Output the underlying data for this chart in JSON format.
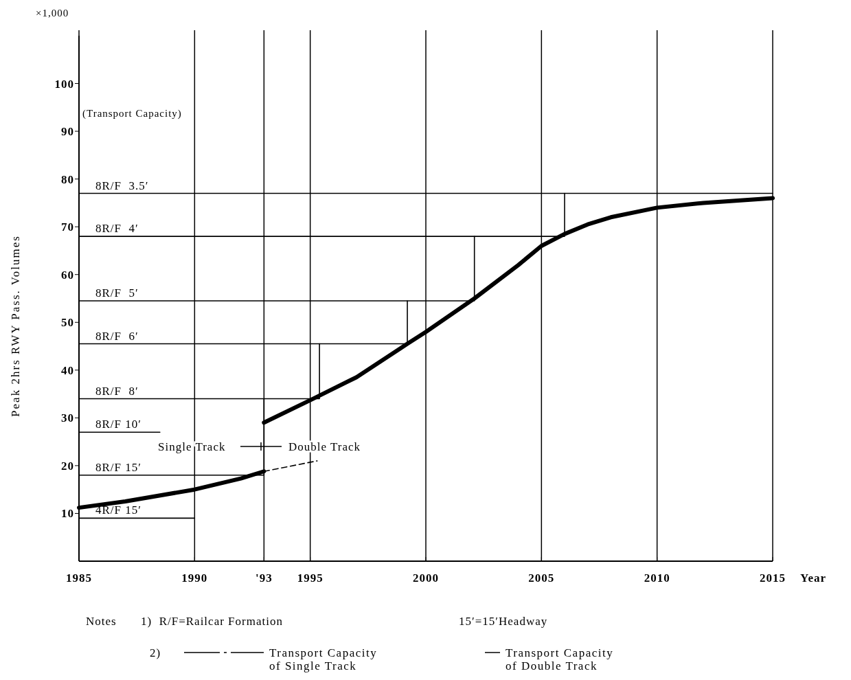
{
  "chart_data": {
    "type": "line",
    "xlabel": "Year",
    "ylabel": "Peak 2hrs RWY Pass. Volumes",
    "annotations": [
      "×1,000",
      "(Transport Capacity)",
      "Single Track",
      "Double Track",
      "Notes",
      "1)  R/F=Railcar Formation",
      "15′=15′Headway",
      "2)",
      "Transport Capacity of Single Track",
      "Transport Capacity of Double Track"
    ],
    "xlim": [
      1985,
      2015
    ],
    "ylim": [
      0,
      110
    ],
    "xticks": [
      1985,
      1990,
      {
        "value": 1993,
        "label": "'93"
      },
      1995,
      2000,
      2005,
      2010,
      2015
    ],
    "yticks": [
      10,
      20,
      30,
      40,
      50,
      60,
      70,
      80,
      90,
      100
    ],
    "grid": "x",
    "legend": "left",
    "marker": "none",
    "series": [
      {
        "name": "8R/F  3.5′",
        "color": "#000000",
        "x": [
          1985,
          2015
        ],
        "values": [
          77,
          77
        ]
      },
      {
        "name": "8R/F  4′",
        "color": "#000000",
        "x": [
          1985,
          2006,
          2006
        ],
        "values": [
          68,
          68,
          77
        ]
      },
      {
        "name": "8R/F  5′",
        "color": "#000000",
        "x": [
          1985,
          2002.1,
          2002.1
        ],
        "values": [
          54.5,
          54.5,
          68
        ]
      },
      {
        "name": "8R/F  6′",
        "color": "#000000",
        "x": [
          1985,
          1999.2,
          1999.2
        ],
        "values": [
          45.5,
          45.5,
          54.5
        ]
      },
      {
        "name": "8R/F  8′",
        "color": "#000000",
        "x": [
          1985,
          1995.4,
          1995.4
        ],
        "values": [
          34,
          34,
          45.5
        ]
      },
      {
        "name": "8R/F 10′",
        "color": "#000000",
        "x": [
          1985,
          1988.5
        ],
        "values": [
          27,
          27
        ]
      },
      {
        "name": "8R/F 15′",
        "color": "#000000",
        "x": [
          1985,
          1993,
          1993
        ],
        "values": [
          18,
          18,
          34
        ]
      },
      {
        "name": "4R/F 15′",
        "color": "#000000",
        "x": [
          1985,
          1990
        ],
        "values": [
          9,
          9
        ]
      },
      {
        "color": "#000000",
        "line_style": "dashed",
        "x": [
          1993,
          1995.3
        ],
        "values": [
          18.8,
          21
        ]
      },
      {
        "color": "#000000",
        "x": [
          1985,
          1987,
          1990,
          1992,
          1993
        ],
        "values": [
          11.2,
          12.5,
          15,
          17.3,
          18.8
        ]
      },
      {
        "color": "#000000",
        "x": [
          1993,
          1995,
          1997,
          1999.2,
          2000,
          2002.1,
          2004,
          2005,
          2006,
          2007,
          2008,
          2010,
          2012,
          2015
        ],
        "values": [
          29,
          33.7,
          38.5,
          45.5,
          48,
          55,
          62,
          66,
          68.5,
          70.5,
          72,
          74,
          75,
          76
        ]
      }
    ]
  }
}
